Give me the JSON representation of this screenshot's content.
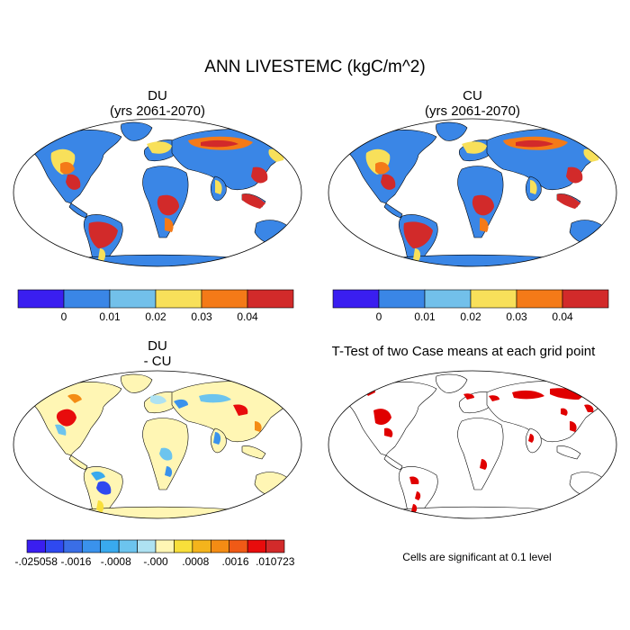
{
  "figure": {
    "title": "ANN LIVESTEMC (kgC/m^2)"
  },
  "panels": [
    {
      "id": "du",
      "title_line1": "DU",
      "title_line2": "(yrs 2061-2070)"
    },
    {
      "id": "cu",
      "title_line1": "CU",
      "title_line2": "(yrs 2061-2070)"
    },
    {
      "id": "diff",
      "title_line1": "DU",
      "title_line2": "- CU"
    },
    {
      "id": "ttest",
      "title_line1": "T-Test of two Case means at each grid point",
      "title_line2": ""
    }
  ],
  "colorbars": {
    "main": {
      "colors": [
        "#3a1ef0",
        "#3a86e6",
        "#72c0ea",
        "#f8e05a",
        "#f47a18",
        "#d22a2a"
      ],
      "labels": [
        "0",
        "0.01",
        "0.02",
        "0.03",
        "0.04"
      ]
    },
    "diff": {
      "colors": [
        "#3a1ef0",
        "#2f49f0",
        "#3a6ee6",
        "#3a92ec",
        "#39aaee",
        "#6cc4ee",
        "#aee2f2",
        "#fff6b4",
        "#f8df3a",
        "#f4b41c",
        "#f48c14",
        "#f05a16",
        "#e80c0c",
        "#d22a2a"
      ],
      "labels": [
        "-.025058",
        "-.0016",
        "-.0008",
        "-.000",
        ".0008",
        ".0016",
        ".010723"
      ]
    }
  },
  "ttest_note": "Cells are significant at 0.1 level",
  "colors": {
    "ocean": "#ffffff",
    "land_low": "#3a86e6",
    "land_mid": "#72c0ea",
    "land_yellow": "#f8e05a",
    "land_orange": "#f47a18",
    "land_red": "#d22a2a",
    "diff_neutral": "#fff6b4",
    "significant": "#e00000"
  }
}
